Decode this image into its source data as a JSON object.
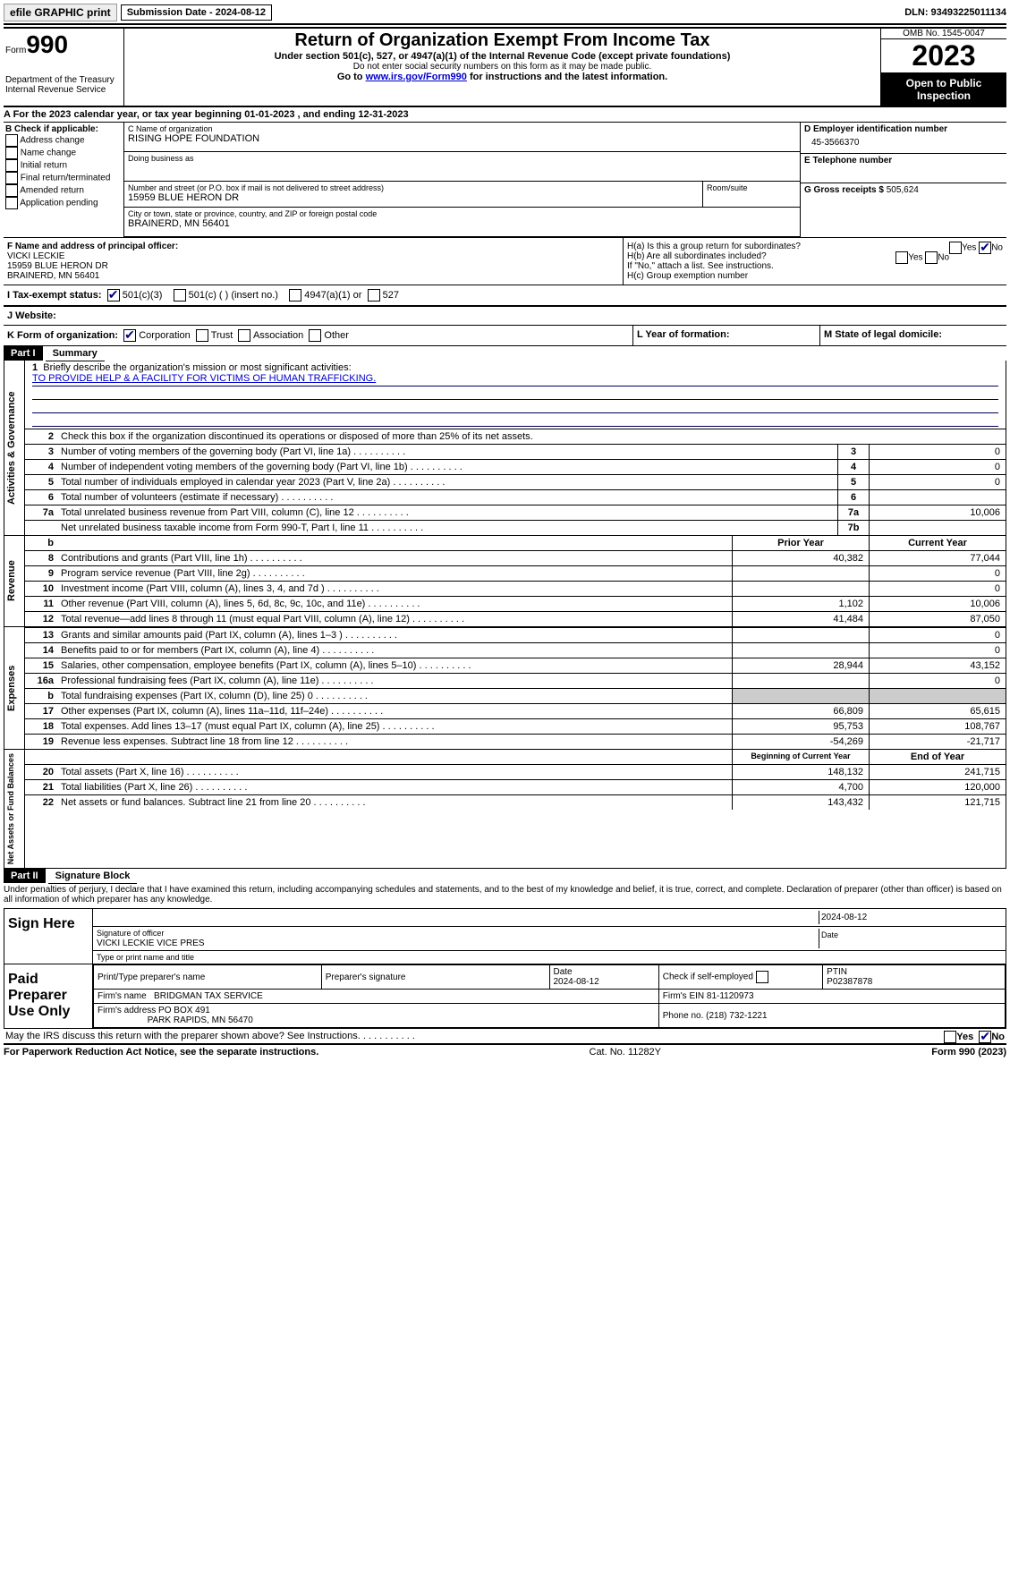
{
  "top": {
    "efile_btn": "efile GRAPHIC print",
    "sub_date_label": "Submission Date - 2024-08-12",
    "dln": "DLN: 93493225011134"
  },
  "header": {
    "form_word": "Form",
    "form_num": "990",
    "dept": "Department of the Treasury",
    "irs": "Internal Revenue Service",
    "title": "Return of Organization Exempt From Income Tax",
    "subtitle": "Under section 501(c), 527, or 4947(a)(1) of the Internal Revenue Code (except private foundations)",
    "ssn_note": "Do not enter social security numbers on this form as it may be made public.",
    "goto": "Go to ",
    "goto_link": "www.irs.gov/Form990",
    "goto_after": " for instructions and the latest information.",
    "omb": "OMB No. 1545-0047",
    "year": "2023",
    "open": "Open to Public Inspection"
  },
  "lineA": "A For the 2023 calendar year, or tax year beginning 01-01-2023    , and ending 12-31-2023",
  "boxB": {
    "title": "B Check if applicable:",
    "opts": [
      "Address change",
      "Name change",
      "Initial return",
      "Final return/terminated",
      "Amended return",
      "Application pending"
    ]
  },
  "boxC": {
    "name_lbl": "C Name of organization",
    "name": "RISING HOPE FOUNDATION",
    "dba_lbl": "Doing business as",
    "dba": "",
    "street_lbl": "Number and street (or P.O. box if mail is not delivered to street address)",
    "street": "15959 BLUE HERON DR",
    "room_lbl": "Room/suite",
    "city_lbl": "City or town, state or province, country, and ZIP or foreign postal code",
    "city": "BRAINERD, MN  56401"
  },
  "boxD": {
    "lbl": "D Employer identification number",
    "val": "45-3566370"
  },
  "boxE": {
    "lbl": "E Telephone number",
    "val": ""
  },
  "boxG": {
    "lbl": "G Gross receipts $",
    "val": "505,624"
  },
  "boxF": {
    "lbl": "F  Name and address of principal officer:",
    "name": "VICKI LECKIE",
    "street": "15959 BLUE HERON DR",
    "city": "BRAINERD, MN  56401"
  },
  "boxH": {
    "a": "H(a)  Is this a group return for subordinates?",
    "b": "H(b)  Are all subordinates included?",
    "note": "If \"No,\" attach a list. See instructions.",
    "c": "H(c)  Group exemption number"
  },
  "boxI": {
    "lbl": "I   Tax-exempt status:",
    "opts": [
      "501(c)(3)",
      "501(c) (  ) (insert no.)",
      "4947(a)(1) or",
      "527"
    ]
  },
  "boxJ": {
    "lbl": "J   Website:",
    "val": ""
  },
  "boxK": {
    "lbl": "K Form of organization:",
    "opts": [
      "Corporation",
      "Trust",
      "Association",
      "Other"
    ]
  },
  "boxL": "L Year of formation:",
  "boxM": "M State of legal domicile:",
  "part1": {
    "hdr": "Part I",
    "title": "Summary"
  },
  "mission": {
    "q": "Briefly describe the organization's mission or most significant activities:",
    "a": "TO PROVIDE HELP & A FACILITY FOR VICTIMS OF HUMAN TRAFFICKING."
  },
  "line2": "Check this box      if the organization discontinued its operations or disposed of more than 25% of its net assets.",
  "gov": {
    "side": "Activities & Governance",
    "rows": [
      {
        "n": "3",
        "d": "Number of voting members of the governing body (Part VI, line 1a)",
        "box": "3",
        "v": "0"
      },
      {
        "n": "4",
        "d": "Number of independent voting members of the governing body (Part VI, line 1b)",
        "box": "4",
        "v": "0"
      },
      {
        "n": "5",
        "d": "Total number of individuals employed in calendar year 2023 (Part V, line 2a)",
        "box": "5",
        "v": "0"
      },
      {
        "n": "6",
        "d": "Total number of volunteers (estimate if necessary)",
        "box": "6",
        "v": ""
      },
      {
        "n": "7a",
        "d": "Total unrelated business revenue from Part VIII, column (C), line 12",
        "box": "7a",
        "v": "10,006"
      },
      {
        "n": "",
        "d": "Net unrelated business taxable income from Form 990-T, Part I, line 11",
        "box": "7b",
        "v": ""
      }
    ]
  },
  "rev": {
    "side": "Revenue",
    "hdr_b": "b",
    "col_py": "Prior Year",
    "col_cy": "Current Year",
    "rows": [
      {
        "n": "8",
        "d": "Contributions and grants (Part VIII, line 1h)",
        "py": "40,382",
        "cy": "77,044"
      },
      {
        "n": "9",
        "d": "Program service revenue (Part VIII, line 2g)",
        "py": "",
        "cy": "0"
      },
      {
        "n": "10",
        "d": "Investment income (Part VIII, column (A), lines 3, 4, and 7d )",
        "py": "",
        "cy": "0"
      },
      {
        "n": "11",
        "d": "Other revenue (Part VIII, column (A), lines 5, 6d, 8c, 9c, 10c, and 11e)",
        "py": "1,102",
        "cy": "10,006"
      },
      {
        "n": "12",
        "d": "Total revenue—add lines 8 through 11 (must equal Part VIII, column (A), line 12)",
        "py": "41,484",
        "cy": "87,050"
      }
    ]
  },
  "exp": {
    "side": "Expenses",
    "rows": [
      {
        "n": "13",
        "d": "Grants and similar amounts paid (Part IX, column (A), lines 1–3 )",
        "py": "",
        "cy": "0"
      },
      {
        "n": "14",
        "d": "Benefits paid to or for members (Part IX, column (A), line 4)",
        "py": "",
        "cy": "0"
      },
      {
        "n": "15",
        "d": "Salaries, other compensation, employee benefits (Part IX, column (A), lines 5–10)",
        "py": "28,944",
        "cy": "43,152"
      },
      {
        "n": "16a",
        "d": "Professional fundraising fees (Part IX, column (A), line 11e)",
        "py": "",
        "cy": "0"
      },
      {
        "n": "b",
        "d": "Total fundraising expenses (Part IX, column (D), line 25) 0",
        "py": "shaded",
        "cy": "shaded"
      },
      {
        "n": "17",
        "d": "Other expenses (Part IX, column (A), lines 11a–11d, 11f–24e)",
        "py": "66,809",
        "cy": "65,615"
      },
      {
        "n": "18",
        "d": "Total expenses. Add lines 13–17 (must equal Part IX, column (A), line 25)",
        "py": "95,753",
        "cy": "108,767"
      },
      {
        "n": "19",
        "d": "Revenue less expenses. Subtract line 18 from line 12",
        "py": "-54,269",
        "cy": "-21,717"
      }
    ]
  },
  "net": {
    "side": "Net Assets or Fund Balances",
    "col_py": "Beginning of Current Year",
    "col_cy": "End of Year",
    "rows": [
      {
        "n": "20",
        "d": "Total assets (Part X, line 16)",
        "py": "148,132",
        "cy": "241,715"
      },
      {
        "n": "21",
        "d": "Total liabilities (Part X, line 26)",
        "py": "4,700",
        "cy": "120,000"
      },
      {
        "n": "22",
        "d": "Net assets or fund balances. Subtract line 21 from line 20",
        "py": "143,432",
        "cy": "121,715"
      }
    ]
  },
  "part2": {
    "hdr": "Part II",
    "title": "Signature Block"
  },
  "penalty": "Under penalties of perjury, I declare that I have examined this return, including accompanying schedules and statements, and to the best of my knowledge and belief, it is true, correct, and complete. Declaration of preparer (other than officer) is based on all information of which preparer has any knowledge.",
  "sign": {
    "here": "Sign Here",
    "sig_lbl": "Signature of officer",
    "date_lbl": "Date",
    "date": "2024-08-12",
    "name": "VICKI LECKIE  VICE PRES",
    "type_lbl": "Type or print name and title"
  },
  "paid": {
    "lbl": "Paid Preparer Use Only",
    "prep_name_lbl": "Print/Type preparer's name",
    "prep_sig_lbl": "Preparer's signature",
    "prep_date_lbl": "Date",
    "prep_date": "2024-08-12",
    "check_lbl": "Check        if self-employed",
    "ptin_lbl": "PTIN",
    "ptin": "P02387878",
    "firm_name_lbl": "Firm's name",
    "firm_name": "BRIDGMAN TAX SERVICE",
    "firm_ein_lbl": "Firm's EIN",
    "firm_ein": "81-1120973",
    "firm_addr_lbl": "Firm's address",
    "firm_addr1": "PO BOX 491",
    "firm_addr2": "PARK RAPIDS, MN  56470",
    "phone_lbl": "Phone no.",
    "phone": "(218) 732-1221"
  },
  "discuss": "May the IRS discuss this return with the preparer shown above? See Instructions.",
  "footer": {
    "left": "For Paperwork Reduction Act Notice, see the separate instructions.",
    "mid": "Cat. No. 11282Y",
    "right": "Form 990 (2023)"
  },
  "yn": {
    "yes": "Yes",
    "no": "No"
  }
}
